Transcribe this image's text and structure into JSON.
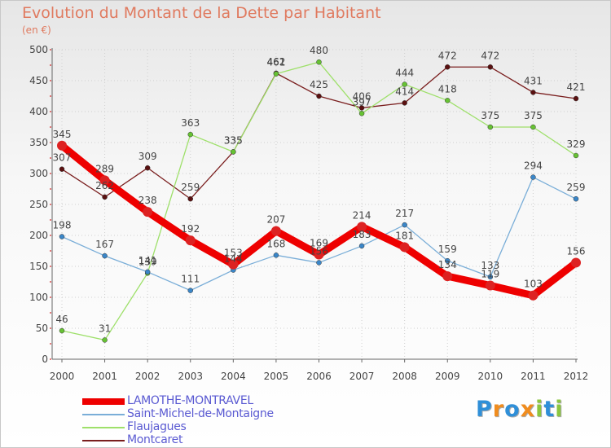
{
  "title": "Evolution du Montant de la Dette par Habitant",
  "subtitle": "(en €)",
  "logo": {
    "text": "Proxiti",
    "letters": [
      {
        "ch": "P",
        "color": "#2f8fd8"
      },
      {
        "ch": "r",
        "color": "#f08c1e"
      },
      {
        "ch": "o",
        "color": "#2f8fd8"
      },
      {
        "ch": "x",
        "color": "#f08c1e"
      },
      {
        "ch": "i",
        "color": "#8cc63f"
      },
      {
        "ch": "t",
        "color": "#2f8fd8"
      },
      {
        "ch": "i",
        "color": "#8cc63f"
      }
    ]
  },
  "chart_data": {
    "type": "line",
    "x": [
      "2000",
      "2001",
      "2002",
      "2003",
      "2004",
      "2005",
      "2006",
      "2007",
      "2008",
      "2009",
      "2010",
      "2011",
      "2012"
    ],
    "ylim": [
      0,
      500
    ],
    "yticks": [
      "0",
      "50",
      "100",
      "150",
      "200",
      "250",
      "300",
      "350",
      "400",
      "450",
      "500"
    ],
    "grid": true,
    "legend_position": "bottom",
    "series": [
      {
        "name": "Montcaret",
        "color": "#7a1e1e",
        "dot": "#5a1010",
        "values": [
          307,
          262,
          309,
          259,
          335,
          462,
          425,
          406,
          414,
          472,
          472,
          431,
          421
        ],
        "labels": [
          "307",
          "262",
          "309",
          "259",
          "335",
          "462",
          "425",
          "406",
          "414",
          "472",
          "472",
          "431",
          "421"
        ]
      },
      {
        "name": "Flaujagues",
        "color": "#9ee06a",
        "dot": "#66c233",
        "values": [
          46,
          31,
          139,
          363,
          335,
          461,
          480,
          397,
          444,
          418,
          375,
          375,
          329
        ],
        "labels": [
          "46",
          "31",
          "139",
          "363",
          "335",
          "461",
          "480",
          "397",
          "444",
          "418",
          "375",
          "375",
          "329"
        ]
      },
      {
        "name": "Saint-Michel-de-Montaigne",
        "color": "#7aaed8",
        "dot": "#3a86c8",
        "values": [
          198,
          167,
          141,
          111,
          144,
          168,
          156,
          183,
          217,
          159,
          133,
          294,
          259
        ],
        "labels": [
          "198",
          "167",
          "141",
          "111",
          "144",
          "168",
          "156",
          "183",
          "217",
          "159",
          "133",
          "294",
          "259"
        ]
      },
      {
        "name": "LAMOTHE-MONTRAVEL",
        "color": "#ee0000",
        "dot": "#dd2222",
        "values": [
          345,
          289,
          238,
          192,
          153,
          207,
          169,
          214,
          181,
          134,
          119,
          103,
          156
        ],
        "labels": [
          "345",
          "289",
          "238",
          "192",
          "153",
          "207",
          "169",
          "214",
          "181",
          "134",
          "119",
          "103",
          "156"
        ]
      }
    ],
    "legend": [
      {
        "name": "LAMOTHE-MONTRAVEL",
        "color": "#ee0000",
        "style": "thick"
      },
      {
        "name": "Saint-Michel-de-Montaigne",
        "color": "#7aaed8",
        "style": "thin"
      },
      {
        "name": "Flaujagues",
        "color": "#9ee06a",
        "style": "thin"
      },
      {
        "name": "Montcaret",
        "color": "#7a1e1e",
        "style": "thin"
      }
    ]
  }
}
